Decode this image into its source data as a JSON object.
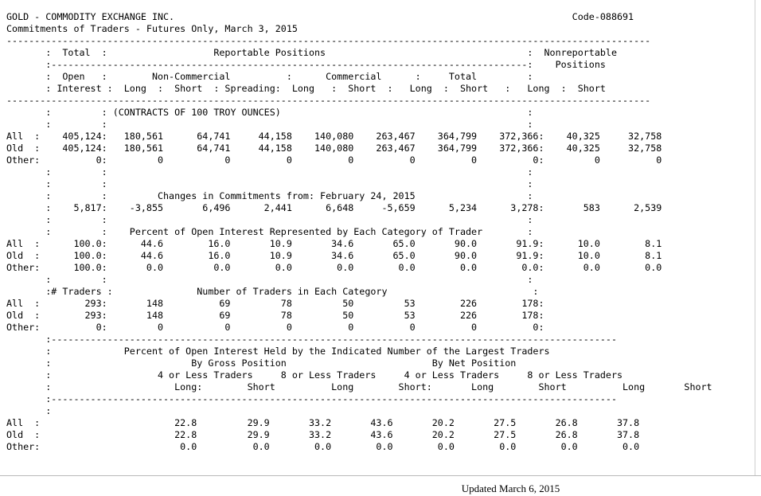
{
  "report": {
    "lines": [
      "GOLD - COMMODITY EXCHANGE INC.                                                                       Code-088691",
      "Commitments of Traders - Futures Only, March 3, 2015",
      "-------------------------------------------------------------------------------------------------------------------",
      "       :  Total  :                   Reportable Positions                                    :  Nonreportable",
      "       :-------------------------------------------------------------------------------------:    Positions",
      "       :  Open   :        Non-Commercial          :      Commercial      :     Total         :",
      "       : Interest :  Long  :  Short  : Spreading:  Long   :  Short  :   Long  :  Short   :   Long  :  Short",
      "-------------------------------------------------------------------------------------------------------------------",
      "       :         : (CONTRACTS OF 100 TROY OUNCES)                                            :",
      "       :         :                                                                           :",
      "All  :    405,124:   180,561      64,741     44,158    140,080    263,467    364,799    372,366:    40,325     32,758",
      "Old  :    405,124:   180,561      64,741     44,158    140,080    263,467    364,799    372,366:    40,325     32,758",
      "Other:          0:         0           0          0          0          0          0          0:         0          0",
      "       :         :                                                                           :",
      "       :         :                                                                           :",
      "       :         :         Changes in Commitments from: February 24, 2015                    :",
      "       :    5,817:    -3,855       6,496      2,441      6,648     -5,659      5,234      3,278:       583      2,539",
      "       :         :                                                                           :",
      "       :         :    Percent of Open Interest Represented by Each Category of Trader        :",
      "All  :      100.0:      44.6        16.0       10.9       34.6       65.0       90.0       91.9:      10.0        8.1",
      "Old  :      100.0:      44.6        16.0       10.9       34.6       65.0       90.0       91.9:      10.0        8.1",
      "Other:      100.0:       0.0         0.0        0.0        0.0        0.0        0.0        0.0:       0.0        0.0",
      "       :         :                                                                           :",
      "       :# Traders :               Number of Traders in Each Category                          :",
      "All  :        293:       148          69         78         50         53        226        178:",
      "Old  :        293:       148          69         78         50         53        226        178:",
      "Other:          0:         0           0          0          0          0          0          0:",
      "       :-----------------------------------------------------------------------------------------------------",
      "       :             Percent of Open Interest Held by the Indicated Number of the Largest Traders",
      "       :                         By Gross Position                          By Net Position",
      "       :                   4 or Less Traders     8 or Less Traders     4 or Less Traders     8 or Less Traders",
      "       :                      Long:        Short          Long        Short:       Long        Short          Long       Short",
      "       :-----------------------------------------------------------------------------------------------------",
      "       :",
      "All  :                        22.8         29.9       33.2       43.6       20.2       27.5       26.8       37.8",
      "Old  :                        22.8         29.9       33.2       43.6       20.2       27.5       26.8       37.8",
      "Other:                         0.0          0.0        0.0        0.0        0.0        0.0        0.0        0.0"
    ]
  },
  "footer": {
    "updated": "Updated March 6, 2015"
  }
}
